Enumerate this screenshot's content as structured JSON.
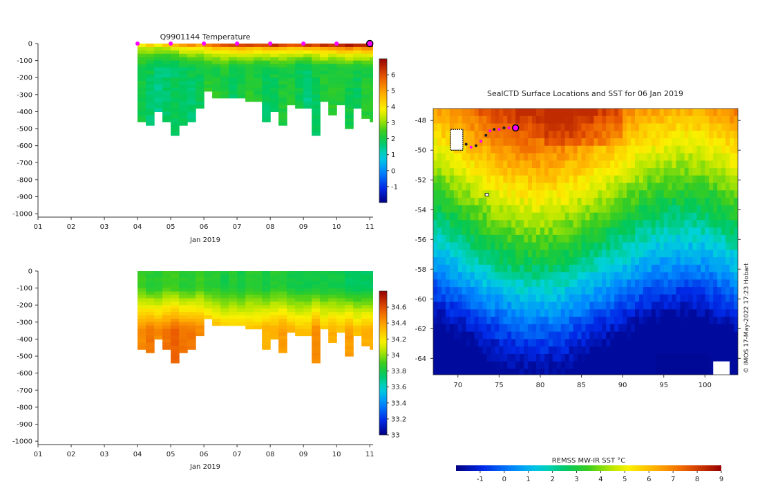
{
  "chart_data": [
    {
      "type": "heatmap",
      "title": "Q9901144  Temperature",
      "xlabel": "Jan 2019",
      "ylabel": "",
      "x_ticks": [
        "01",
        "02",
        "03",
        "04",
        "05",
        "06",
        "07",
        "08",
        "09",
        "10",
        "11"
      ],
      "xlim": [
        1,
        11.1
      ],
      "y_ticks": [
        0,
        -100,
        -200,
        -300,
        -400,
        -500,
        -600,
        -700,
        -800,
        -900,
        -1000
      ],
      "ylim": [
        -1020,
        0
      ],
      "colorbar": {
        "min": -2,
        "max": 7,
        "ticks": [
          -1,
          0,
          1,
          2,
          3,
          4,
          5,
          6
        ]
      },
      "profile_days": [
        4,
        4.25,
        4.5,
        4.75,
        5,
        5.25,
        5.5,
        5.75,
        6,
        6.25,
        6.5,
        6.75,
        7,
        7.25,
        7.5,
        7.75,
        8,
        8.25,
        8.5,
        8.75,
        9,
        9.25,
        9.5,
        9.75,
        10,
        10.25,
        10.5,
        10.75,
        11
      ],
      "profile_max_depth": [
        460,
        475,
        400,
        445,
        535,
        480,
        455,
        380,
        265,
        310,
        310,
        305,
        305,
        340,
        340,
        460,
        395,
        465,
        360,
        375,
        375,
        530,
        335,
        415,
        355,
        500,
        380,
        435,
        460
      ],
      "profile_surface_temp": [
        4.0,
        4.2,
        4.0,
        4.4,
        4.6,
        5.0,
        5.2,
        4.9,
        5.4,
        5.6,
        5.8,
        6.0,
        6.2,
        6.0,
        5.9,
        6.1,
        6.3,
        6.1,
        5.8,
        6.0,
        6.2,
        6.0,
        6.4,
        6.3,
        6.6,
        6.8,
        6.5,
        6.7,
        6.7
      ],
      "profile_deep_temp": [
        2.0,
        1.9,
        1.6,
        1.5,
        1.6,
        1.8,
        1.9,
        1.9,
        2.1,
        2.1,
        2.2,
        2.0,
        2.0,
        2.1,
        2.0,
        1.9,
        2.0,
        2.1,
        2.0,
        1.8,
        1.7,
        2.0,
        2.1,
        2.0,
        2.1,
        2.2,
        2.0,
        2.1,
        2.0
      ],
      "marker_days": [
        4,
        5,
        6,
        7,
        8,
        9,
        10
      ],
      "current_marker_day": 11
    },
    {
      "type": "heatmap",
      "title": "",
      "xlabel": "Jan 2019",
      "ylabel": "",
      "x_ticks": [
        "01",
        "02",
        "03",
        "04",
        "05",
        "06",
        "07",
        "08",
        "09",
        "10",
        "11"
      ],
      "xlim": [
        1,
        11.1
      ],
      "y_ticks": [
        0,
        -100,
        -200,
        -300,
        -400,
        -500,
        -600,
        -700,
        -800,
        -900,
        -1000
      ],
      "ylim": [
        -1020,
        0
      ],
      "colorbar": {
        "min": 33.0,
        "max": 34.8,
        "ticks": [
          "33",
          "33.2",
          "33.4",
          "33.6",
          "33.8",
          "34",
          "34.2",
          "34.4",
          "34.6"
        ]
      },
      "profile_surface_sal": [
        33.9,
        33.85,
        33.85,
        33.9,
        33.9,
        33.85,
        33.85,
        33.9,
        33.85,
        33.85,
        33.8,
        33.85,
        33.8,
        33.85,
        33.85,
        33.8,
        33.85,
        33.85,
        33.8,
        33.8,
        33.8,
        33.8,
        33.8,
        33.8,
        33.8,
        33.75,
        33.75,
        33.75,
        33.75
      ],
      "profile_deep_sal": [
        34.45,
        34.5,
        34.45,
        34.5,
        34.55,
        34.5,
        34.5,
        34.45,
        34.4,
        34.35,
        34.3,
        34.3,
        34.3,
        34.3,
        34.3,
        34.35,
        34.35,
        34.4,
        34.35,
        34.3,
        34.3,
        34.45,
        34.3,
        34.35,
        34.3,
        34.4,
        34.3,
        34.35,
        34.35
      ]
    },
    {
      "type": "heatmap",
      "title": "SealCTD Surface Locations and SST for 06 Jan 2019",
      "xlabel": "",
      "ylabel": "",
      "x_ticks": [
        70,
        75,
        80,
        85,
        90,
        95,
        100
      ],
      "xlim": [
        67,
        104
      ],
      "y_ticks": [
        -48,
        -50,
        -52,
        -54,
        -56,
        -58,
        -60,
        -62,
        -64
      ],
      "ylim": [
        -65.1,
        -47.2
      ],
      "colorbar_title": "REMSS MW-IR SST °C",
      "colorbar": {
        "min": -2,
        "max": 9,
        "ticks": [
          -1,
          0,
          1,
          2,
          3,
          4,
          5,
          6,
          7,
          8,
          9
        ]
      },
      "track": {
        "lon": [
          71.0,
          71.6,
          72.2,
          72.8,
          73.4,
          73.9,
          74.4,
          75.0,
          75.6,
          76.2,
          76.8
        ],
        "lat": [
          -49.6,
          -49.8,
          -49.7,
          -49.4,
          -49.0,
          -48.7,
          -48.6,
          -48.6,
          -48.5,
          -48.5,
          -48.5
        ]
      },
      "current_position": {
        "lon": 77.0,
        "lat": -48.5
      },
      "credit": "© IMOS 17-May-2022 17:23 Hobart"
    }
  ]
}
